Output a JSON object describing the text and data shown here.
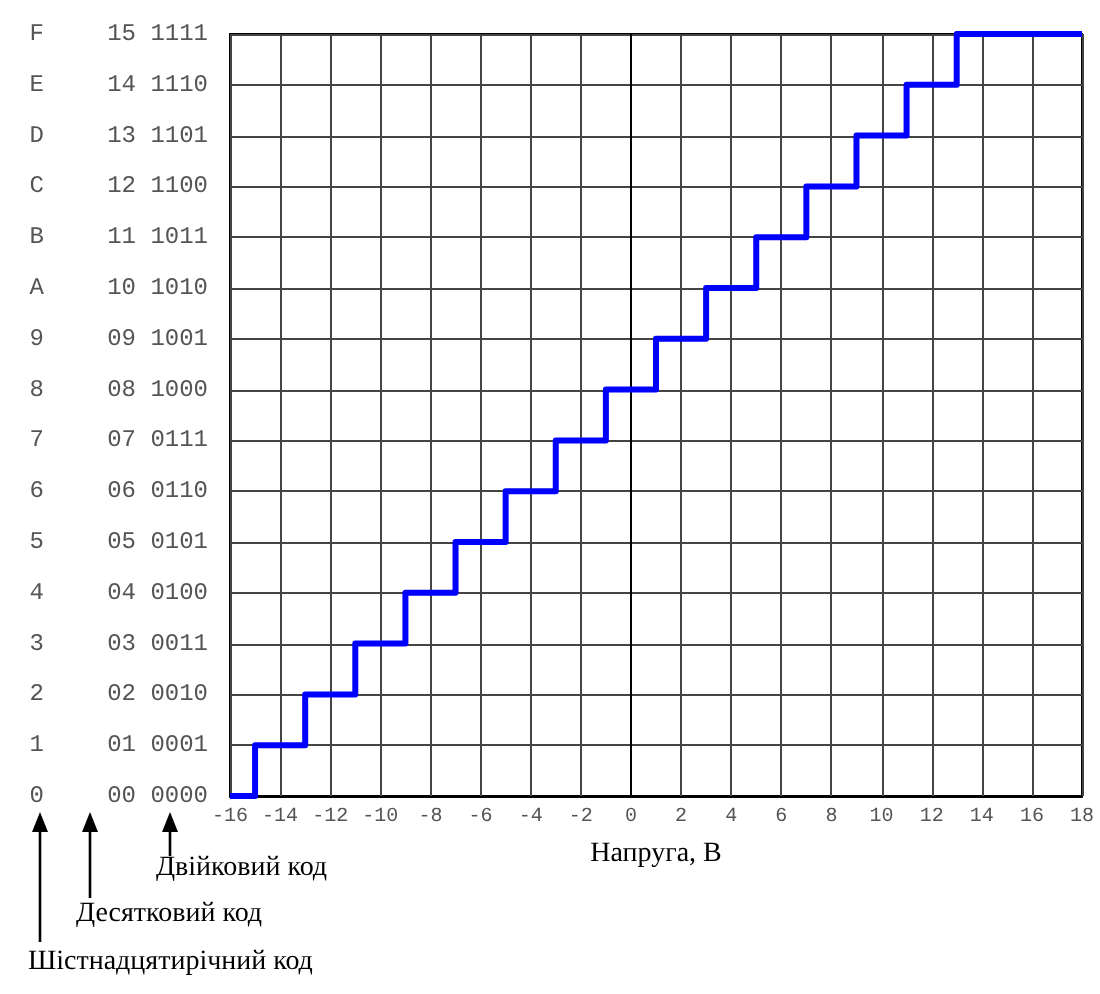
{
  "chart_data": {
    "type": "step",
    "xlabel": "Напруга, В",
    "x": [
      -16,
      -15,
      -13,
      -11,
      -9,
      -7,
      -5,
      -3,
      -1,
      1,
      3,
      5,
      7,
      9,
      11,
      13,
      18
    ],
    "values": [
      0,
      1,
      2,
      3,
      4,
      5,
      6,
      7,
      8,
      9,
      10,
      11,
      12,
      13,
      14,
      15,
      15
    ],
    "color": "#0000ff",
    "xlim": [
      -16,
      18
    ],
    "xticks": [
      -16,
      -14,
      -12,
      -10,
      -8,
      -6,
      -4,
      -2,
      0,
      2,
      4,
      6,
      8,
      10,
      12,
      14,
      16,
      18
    ],
    "ylim": [
      0,
      15
    ],
    "yticks": [
      {
        "value": 0,
        "label": "00"
      },
      {
        "value": 1,
        "label": "01"
      },
      {
        "value": 2,
        "label": "02"
      },
      {
        "value": 3,
        "label": "03"
      },
      {
        "value": 4,
        "label": "04"
      },
      {
        "value": 5,
        "label": "05"
      },
      {
        "value": 6,
        "label": "06"
      },
      {
        "value": 7,
        "label": "07"
      },
      {
        "value": 8,
        "label": "08"
      },
      {
        "value": 9,
        "label": "09"
      },
      10,
      11,
      12,
      13,
      14,
      15
    ],
    "grid": true,
    "marker": "none",
    "annotations": [
      "Двійковий код",
      "Десятковий код",
      "Шістнадцятирічний код",
      "0",
      "1",
      "2",
      "3",
      "4",
      "5",
      "6",
      "7",
      "8",
      "9",
      "A",
      "B",
      "C",
      "D",
      "E",
      "F",
      "0000",
      "0001",
      "0010",
      "0011",
      "0100",
      "0101",
      "0110",
      "0111",
      "1000",
      "1001",
      "1010",
      "1011",
      "1100",
      "1101",
      "1110",
      "1111"
    ]
  }
}
